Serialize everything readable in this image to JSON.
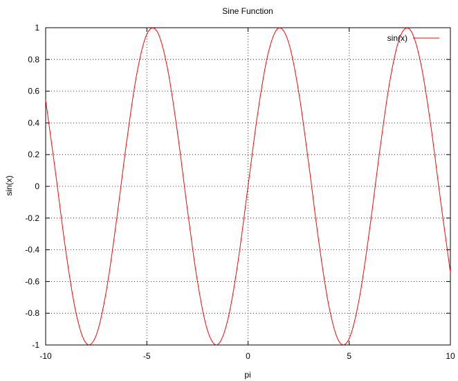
{
  "chart_data": {
    "type": "line",
    "title": "Sine Function",
    "xlabel": "pi",
    "ylabel": "sin(x)",
    "xlim": [
      -10,
      10
    ],
    "ylim": [
      -1,
      1
    ],
    "xticks": [
      -10,
      -5,
      0,
      5,
      10
    ],
    "yticks": [
      -1,
      -0.8,
      -0.6,
      -0.4,
      -0.2,
      0,
      0.2,
      0.4,
      0.6,
      0.8,
      1
    ],
    "x_tick_labels": [
      "-10",
      "-5",
      "0",
      "5",
      "10"
    ],
    "y_tick_labels": [
      "-1",
      "-0.8",
      "-0.6",
      "-0.4",
      "-0.2",
      "0",
      "0.2",
      "0.4",
      "0.6",
      "0.8",
      "1"
    ],
    "grid": true,
    "legend_position": "top-right",
    "series": [
      {
        "name": "sin(x)",
        "color": "#ff0000",
        "x": [
          -10,
          -9.5,
          -9,
          -8.5,
          -8,
          -7.5,
          -7,
          -6.5,
          -6,
          -5.5,
          -5,
          -4.5,
          -4,
          -3.5,
          -3,
          -2.5,
          -2,
          -1.5,
          -1,
          -0.5,
          0,
          0.5,
          1,
          1.5,
          2,
          2.5,
          3,
          3.5,
          4,
          4.5,
          5,
          5.5,
          6,
          6.5,
          7,
          7.5,
          8,
          8.5,
          9,
          9.5,
          10
        ],
        "y": [
          0.544,
          0.075,
          -0.412,
          -0.798,
          -0.989,
          -0.938,
          -0.657,
          -0.215,
          0.279,
          0.706,
          0.959,
          0.978,
          0.757,
          0.351,
          -0.141,
          -0.598,
          -0.909,
          -0.997,
          -0.841,
          -0.479,
          0,
          0.479,
          0.841,
          0.997,
          0.909,
          0.598,
          0.141,
          -0.351,
          -0.757,
          -0.978,
          -0.959,
          -0.706,
          -0.279,
          0.215,
          0.657,
          0.938,
          0.989,
          0.798,
          0.412,
          -0.075,
          -0.544
        ]
      }
    ]
  }
}
